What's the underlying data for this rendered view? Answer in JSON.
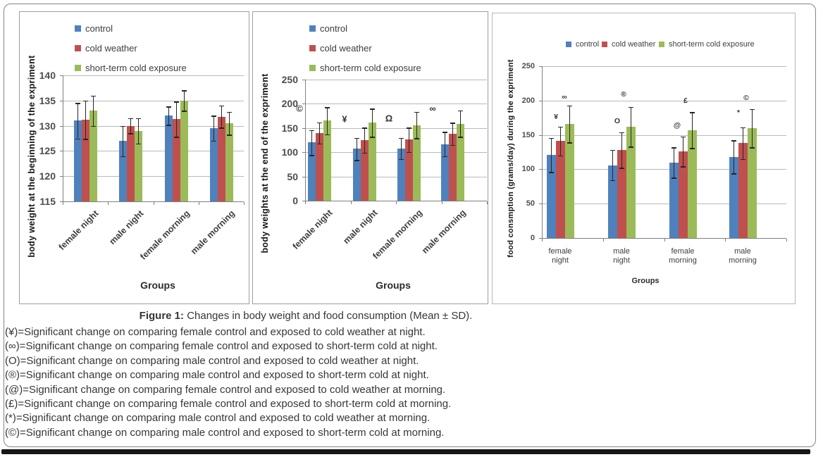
{
  "figure": {
    "caption_label": "Figure 1:",
    "caption_text": "Changes in body weight and food consumption (Mean ± SD).",
    "footnotes": [
      "(¥)=Significant change on comparing female control and exposed to cold weather at night.",
      "(∞)=Significant change on comparing female control and exposed to short-term cold at night.",
      "(O)=Significant change on comparing male control and exposed to cold weather at night.",
      "(®)=Significant change on comparing male control and exposed to short-term cold at night.",
      "(@)=Significant change on comparing female control and exposed to cold weather at morning.",
      "(£)=Significant change on comparing female control and exposed to short-term cold at morning.",
      "(*)=Significant change on comparing male control and exposed to cold weather at morning.",
      "(©)=Significant change on comparing male control and exposed to short-term cold at morning."
    ]
  },
  "colors": {
    "control": "#4F81BD",
    "cold_weather": "#C0504D",
    "short_term_cold_exposure": "#9BBB59",
    "error_bar": "#262626",
    "gridline": "#b9b9b9",
    "axis": "#7f7f7f"
  },
  "chart_data": [
    {
      "type": "bar",
      "ylabel": "body weight at the beginning of the expriment",
      "xlabel": "Groups",
      "categories": [
        "female night",
        "male night",
        "female morning",
        "male morning"
      ],
      "ylim": [
        115,
        140
      ],
      "ytick_step": 5,
      "grid": true,
      "legend_position": "top-left-vertical",
      "legend": [
        "control",
        "cold weather",
        "short-term cold exposure"
      ],
      "series": [
        {
          "name": "control",
          "values": [
            131,
            127,
            132,
            129.5
          ],
          "errors": [
            3.5,
            3,
            1.8,
            2.5
          ]
        },
        {
          "name": "cold weather",
          "values": [
            131.2,
            130,
            131.3,
            131.8
          ],
          "errors": [
            3.8,
            1.5,
            3.5,
            2.2
          ]
        },
        {
          "name": "short-term cold exposure",
          "values": [
            133,
            129,
            135,
            130.5
          ],
          "errors": [
            3,
            2.5,
            2,
            2.3
          ]
        }
      ],
      "annotations": []
    },
    {
      "type": "bar",
      "ylabel": "body weights at the end of the expriment",
      "xlabel": "Groups",
      "categories": [
        "female night",
        "male night",
        "female morning",
        "male morning"
      ],
      "ylim": [
        0,
        250
      ],
      "ytick_step": 50,
      "grid": true,
      "legend_position": "top-left-vertical",
      "legend": [
        "control",
        "cold weather",
        "short-term cold exposure"
      ],
      "series": [
        {
          "name": "control",
          "values": [
            120,
            107,
            108,
            117
          ],
          "errors": [
            26,
            23,
            22,
            25
          ]
        },
        {
          "name": "cold weather",
          "values": [
            140,
            125,
            126,
            138
          ],
          "errors": [
            22,
            26,
            25,
            23
          ]
        },
        {
          "name": "short-term cold exposure",
          "values": [
            165,
            161,
            156,
            159
          ],
          "errors": [
            28,
            29,
            27,
            27
          ]
        }
      ],
      "annotations": [
        {
          "symbol": "©",
          "group": 0,
          "dx": -28,
          "value": 190
        },
        {
          "symbol": "¥",
          "group": 1,
          "dx": -28,
          "value": 168
        },
        {
          "symbol": "Ω",
          "group": 2,
          "dx": -28,
          "value": 170
        },
        {
          "symbol": "∞",
          "group": 3,
          "dx": -28,
          "value": 190
        }
      ]
    },
    {
      "type": "bar",
      "ylabel": "food consmption (grams/day) during the expriment",
      "xlabel": "Groups",
      "categories": [
        "female night",
        "male night",
        "female morning",
        "male morning"
      ],
      "ylim": [
        0,
        250
      ],
      "ytick_step": 50,
      "grid": true,
      "legend_position": "top-horizontal",
      "legend": [
        "control",
        "cold weather",
        "short-term cold exposure"
      ],
      "series": [
        {
          "name": "control",
          "values": [
            121,
            106,
            110,
            118
          ],
          "errors": [
            25,
            22,
            22,
            24
          ]
        },
        {
          "name": "cold weather",
          "values": [
            141,
            128,
            126,
            138
          ],
          "errors": [
            21,
            26,
            22,
            23
          ]
        },
        {
          "name": "short-term cold exposure",
          "values": [
            166,
            162,
            157,
            160
          ],
          "errors": [
            27,
            29,
            26,
            28
          ]
        }
      ],
      "annotations": [
        {
          "symbol": "¥",
          "group": 0,
          "dx": -6,
          "value": 176
        },
        {
          "symbol": "∞",
          "group": 0,
          "dx": 6,
          "value": 205
        },
        {
          "symbol": "O",
          "group": 1,
          "dx": -6,
          "value": 170
        },
        {
          "symbol": "®",
          "group": 1,
          "dx": 3,
          "value": 209
        },
        {
          "symbol": "@",
          "group": 2,
          "dx": -8,
          "value": 164
        },
        {
          "symbol": "£",
          "group": 2,
          "dx": 4,
          "value": 200
        },
        {
          "symbol": "*",
          "group": 3,
          "dx": -6,
          "value": 182
        },
        {
          "symbol": "©",
          "group": 3,
          "dx": 5,
          "value": 204
        }
      ]
    }
  ]
}
